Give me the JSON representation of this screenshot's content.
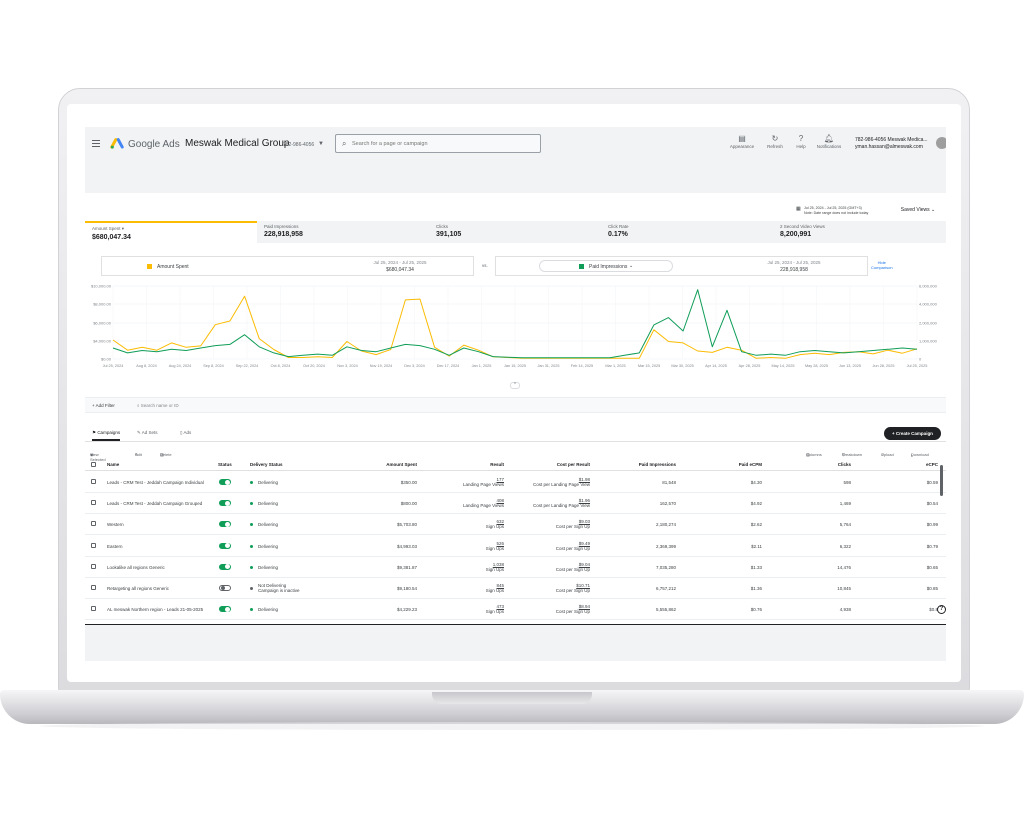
{
  "header": {
    "brand": "Google Ads",
    "account_name": "Meswak Medical Group",
    "account_id": "782-986-4056",
    "search_placeholder": "Search for a page or campaign",
    "tools": [
      {
        "label": "Appearance",
        "icon": "appearance-icon"
      },
      {
        "label": "Refresh",
        "icon": "refresh-icon"
      },
      {
        "label": "Help",
        "icon": "help-icon"
      },
      {
        "label": "Notifications",
        "icon": "bell-icon"
      }
    ],
    "user_line1": "782-986-4056 Meswak Medica...",
    "user_line2": "yman.hassan@almeswak.com"
  },
  "date_range": {
    "range": "Jul 25, 2024 - Jul 25, 2025 (GMT+3)",
    "note": "Note: Date range does not include today"
  },
  "saved_views": "Saved Views",
  "metrics": [
    {
      "label": "Amount Spent",
      "value": "$680,047.34"
    },
    {
      "label": "Paid Impressions",
      "value": "228,918,958"
    },
    {
      "label": "Clicks",
      "value": "391,105"
    },
    {
      "label": "Click Rate",
      "value": "0.17%"
    },
    {
      "label": "2 Second Video Views",
      "value": "8,200,991"
    }
  ],
  "comparison": {
    "left_name": "Amount Spent",
    "left_range": "Jul 25, 2024 - Jul 25, 2025",
    "left_value": "$680,047.34",
    "vs": "vs.",
    "right_name": "Paid Impressions",
    "right_range": "Jul 25, 2024 - Jul 25, 2025",
    "right_value": "228,918,958",
    "hide_label_1": "Hide",
    "hide_label_2": "Comparison"
  },
  "colors": {
    "amount_spent": "#fbbc04",
    "paid_impressions": "#0f9d58",
    "accent": "#1a73e8"
  },
  "chart_data": {
    "type": "line",
    "x_ticks": [
      "Jul 25, 2024",
      "Aug 8, 2024",
      "Aug 24, 2024",
      "Sep 8, 2024",
      "Sep 22, 2024",
      "Oct 8, 2024",
      "Oct 20, 2024",
      "Nov 3, 2024",
      "Nov 19, 2024",
      "Dec 3, 2024",
      "Dec 17, 2024",
      "Jan 1, 2025",
      "Jan 15, 2025",
      "Jan 31, 2025",
      "Feb 14, 2025",
      "Mar 1, 2025",
      "Mar 15, 2025",
      "Mar 30, 2025",
      "Apr 14, 2025",
      "Apr 28, 2025",
      "May 14, 2025",
      "May 28, 2025",
      "Jun 13, 2025",
      "Jun 28, 2025",
      "Jul 25, 2025"
    ],
    "left_axis_ticks": [
      "$10,000.00",
      "$8,000.00",
      "$6,000.00",
      "$4,000.00",
      "$0.00"
    ],
    "right_axis_ticks": [
      "6,000,000",
      "4,000,000",
      "2,000,000",
      "1,000,000",
      "0"
    ],
    "ylim_left": [
      0,
      10000
    ],
    "ylim_right": [
      0,
      6000000
    ],
    "series": [
      {
        "name": "Amount Spent",
        "axis": "left",
        "values": [
          2600,
          1200,
          1600,
          1200,
          2200,
          1600,
          1800,
          4700,
          5200,
          8600,
          2800,
          1300,
          200,
          200,
          300,
          200,
          2400,
          1100,
          600,
          1300,
          8100,
          8200,
          1600,
          400,
          1900,
          1200,
          300,
          200,
          100,
          100,
          100,
          100,
          100,
          100,
          100,
          100,
          100,
          4000,
          2400,
          2200,
          1100,
          900,
          1600,
          1200,
          100,
          200,
          100,
          600,
          800,
          600,
          900,
          1000,
          700,
          1200,
          800,
          1400
        ]
      },
      {
        "name": "Paid Impressions",
        "axis": "right",
        "values": [
          900000,
          500000,
          700000,
          600000,
          800000,
          700000,
          900000,
          1100000,
          1200000,
          2000000,
          1000000,
          500000,
          200000,
          300000,
          400000,
          300000,
          1000000,
          700000,
          600000,
          900000,
          1200000,
          1100000,
          800000,
          300000,
          900000,
          600000,
          200000,
          150000,
          100000,
          100000,
          100000,
          100000,
          100000,
          100000,
          100000,
          300000,
          500000,
          2800000,
          3400000,
          2300000,
          5700000,
          1000000,
          4000000,
          600000,
          300000,
          400000,
          300000,
          600000,
          700000,
          600000,
          500000,
          600000,
          700000,
          800000,
          900000,
          800000
        ]
      }
    ],
    "grid": true
  },
  "filter": {
    "add_filter": "Add Filter",
    "search_placeholder": "Search name or ID"
  },
  "tabs": [
    {
      "label": "Campaigns",
      "icon": "campaign-icon"
    },
    {
      "label": "Ad Sets",
      "icon": "adset-icon"
    },
    {
      "label": "Ads",
      "icon": "ad-icon"
    }
  ],
  "create_campaign": "+ Create Campaign",
  "table_toolbar": {
    "view_selected": "View Selected",
    "edit": "Edit",
    "delete": "Delete",
    "columns": "Columns",
    "breakdown": "Breakdown",
    "upload": "Upload",
    "download": "Download"
  },
  "table": {
    "columns": [
      "Name",
      "Status",
      "Delivery Status",
      "Amount Spent",
      "Result",
      "Cost per Result",
      "Paid Impressions",
      "Paid eCPM",
      "Clicks",
      "eCPC"
    ],
    "rows": [
      {
        "name": "Leads - CRM Test - Jeddah Campaign Individual",
        "status": "on",
        "delivery": "Delivering",
        "delivery2": "",
        "spent": "$350.00",
        "result": "177",
        "result_type": "Landing Page Views",
        "cpr": "$1.98",
        "cpr_type": "Cost per Landing Page View",
        "impr": "81,548",
        "ecpm": "$4.30",
        "clicks": "598",
        "ecpc": "$0.59"
      },
      {
        "name": "Leads - CRM Test - Jeddah Campaign Grouped",
        "status": "on",
        "delivery": "Delivering",
        "delivery2": "",
        "spent": "$800.00",
        "result": "408",
        "result_type": "Landing Page Views",
        "cpr": "$1.96",
        "cpr_type": "Cost per Landing Page View",
        "impr": "162,570",
        "ecpm": "$4.92",
        "clicks": "1,469",
        "ecpc": "$0.54"
      },
      {
        "name": "Western",
        "status": "on",
        "delivery": "Delivering",
        "delivery2": "",
        "spent": "$5,703.80",
        "result": "632",
        "result_type": "Sign Ups",
        "cpr": "$9.03",
        "cpr_type": "Cost per Sign Up",
        "impr": "2,180,274",
        "ecpm": "$2.62",
        "clicks": "5,764",
        "ecpc": "$0.99"
      },
      {
        "name": "Eastern",
        "status": "on",
        "delivery": "Delivering",
        "delivery2": "",
        "spent": "$4,993.03",
        "result": "526",
        "result_type": "Sign Ups",
        "cpr": "$9.49",
        "cpr_type": "Cost per Sign Up",
        "impr": "2,369,399",
        "ecpm": "$2.11",
        "clicks": "6,322",
        "ecpc": "$0.79"
      },
      {
        "name": "Lookalike all regions Generic",
        "status": "on",
        "delivery": "Delivering",
        "delivery2": "",
        "spent": "$9,381.87",
        "result": "1,038",
        "result_type": "Sign Ups",
        "cpr": "$9.04",
        "cpr_type": "Cost per Sign Up",
        "impr": "7,035,280",
        "ecpm": "$1.33",
        "clicks": "14,476",
        "ecpc": "$0.65"
      },
      {
        "name": "Retargeting all regions Generic",
        "status": "off",
        "delivery": "Not Delivering",
        "delivery2": "Campaign is inactive",
        "spent": "$9,180.54",
        "result": "845",
        "result_type": "Sign Ups",
        "cpr": "$10.71",
        "cpr_type": "Cost per Sign Up",
        "impr": "6,757,212",
        "ecpm": "$1.36",
        "clicks": "10,845",
        "ecpc": "$0.85"
      },
      {
        "name": "AL meswak Northern region - Leads 21-05-2025",
        "status": "on",
        "delivery": "Delivering",
        "delivery2": "",
        "spent": "$4,229.23",
        "result": "473",
        "result_type": "Sign Ups",
        "cpr": "$8.94",
        "cpr_type": "Cost per Sign Up",
        "impr": "5,555,862",
        "ecpm": "$0.76",
        "clicks": "4,938",
        "ecpc": "$0.8"
      }
    ]
  }
}
